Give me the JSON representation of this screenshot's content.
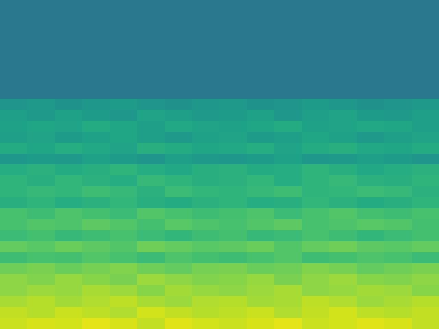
{
  "chart_data": {
    "type": "heatmap",
    "color": "viridis",
    "zlim": [
      0,
      100
    ],
    "tick_labels": false,
    "cells": [
      [
        40,
        40,
        40,
        40,
        40,
        40,
        40,
        40,
        40,
        40,
        40,
        40,
        40,
        40,
        40,
        40
      ],
      [
        40,
        40,
        40,
        40,
        40,
        40,
        40,
        40,
        40,
        40,
        40,
        40,
        40,
        40,
        40,
        40
      ],
      [
        40,
        40,
        40,
        40,
        40,
        40,
        40,
        40,
        40,
        40,
        40,
        40,
        40,
        40,
        40,
        40
      ],
      [
        40,
        40,
        40,
        40,
        40,
        40,
        40,
        40,
        40,
        40,
        40,
        40,
        40,
        40,
        40,
        40
      ],
      [
        40,
        40,
        40,
        40,
        40,
        40,
        40,
        40,
        40,
        40,
        40,
        40,
        40,
        40,
        40,
        40
      ],
      [
        40,
        40,
        40,
        40,
        40,
        40,
        40,
        40,
        40,
        40,
        40,
        40,
        40,
        40,
        40,
        40
      ],
      [
        40,
        40,
        40,
        40,
        40,
        40,
        40,
        40,
        40,
        40,
        40,
        40,
        40,
        40,
        40,
        40
      ],
      [
        40,
        40,
        40,
        40,
        40,
        40,
        40,
        40,
        40,
        40,
        40,
        40,
        40,
        40,
        40,
        40
      ],
      [
        40,
        40,
        40,
        40,
        40,
        40,
        40,
        40,
        40,
        40,
        40,
        40,
        40,
        40,
        40,
        40
      ],
      [
        52,
        54,
        51,
        53,
        55,
        52,
        50,
        53,
        54,
        51,
        52,
        55,
        53,
        50,
        52,
        54
      ],
      [
        56,
        54,
        57,
        55,
        53,
        58,
        56,
        54,
        55,
        57,
        53,
        56,
        58,
        55,
        54,
        56
      ],
      [
        57,
        59,
        58,
        61,
        59,
        56,
        60,
        58,
        57,
        59,
        61,
        57,
        58,
        60,
        59,
        56
      ],
      [
        56,
        58,
        55,
        57,
        59,
        56,
        54,
        57,
        58,
        55,
        56,
        59,
        57,
        54,
        56,
        58
      ],
      [
        61,
        59,
        62,
        60,
        58,
        63,
        61,
        59,
        60,
        62,
        58,
        61,
        63,
        60,
        59,
        61
      ],
      [
        53,
        55,
        54,
        57,
        55,
        52,
        56,
        54,
        53,
        55,
        57,
        53,
        54,
        56,
        55,
        52
      ],
      [
        62,
        64,
        61,
        63,
        65,
        62,
        60,
        63,
        64,
        61,
        62,
        65,
        63,
        60,
        62,
        64
      ],
      [
        65,
        63,
        66,
        64,
        62,
        67,
        65,
        63,
        64,
        66,
        62,
        65,
        67,
        64,
        63,
        65
      ],
      [
        65,
        67,
        66,
        69,
        67,
        64,
        68,
        66,
        65,
        67,
        69,
        65,
        66,
        68,
        67,
        64
      ],
      [
        63,
        65,
        62,
        64,
        66,
        63,
        61,
        64,
        65,
        62,
        63,
        66,
        64,
        61,
        63,
        65
      ],
      [
        71,
        69,
        72,
        70,
        68,
        73,
        71,
        69,
        70,
        72,
        68,
        71,
        73,
        70,
        69,
        71
      ],
      [
        71,
        73,
        72,
        75,
        73,
        70,
        74,
        72,
        71,
        73,
        75,
        71,
        72,
        74,
        73,
        70
      ],
      [
        68,
        70,
        67,
        69,
        71,
        68,
        66,
        69,
        70,
        67,
        68,
        71,
        69,
        66,
        68,
        70
      ],
      [
        76,
        74,
        77,
        75,
        73,
        78,
        76,
        74,
        75,
        77,
        73,
        76,
        78,
        75,
        74,
        76
      ],
      [
        69,
        71,
        70,
        73,
        71,
        68,
        72,
        70,
        69,
        71,
        73,
        69,
        70,
        72,
        71,
        68
      ],
      [
        78,
        80,
        77,
        79,
        81,
        78,
        76,
        79,
        80,
        77,
        78,
        81,
        79,
        76,
        78,
        80
      ],
      [
        83,
        81,
        84,
        82,
        80,
        85,
        83,
        81,
        82,
        84,
        80,
        83,
        85,
        82,
        81,
        83
      ],
      [
        83,
        85,
        84,
        87,
        85,
        82,
        86,
        84,
        83,
        85,
        87,
        83,
        84,
        86,
        85,
        82
      ],
      [
        87,
        89,
        86,
        88,
        90,
        87,
        85,
        88,
        89,
        86,
        87,
        90,
        88,
        85,
        87,
        89
      ],
      [
        91,
        89,
        92,
        90,
        88,
        93,
        91,
        89,
        90,
        92,
        88,
        91,
        93,
        90,
        89,
        91
      ],
      [
        92,
        94,
        93,
        96,
        94,
        91,
        95,
        93,
        92,
        94,
        96,
        92,
        93,
        95,
        94,
        91
      ]
    ]
  }
}
